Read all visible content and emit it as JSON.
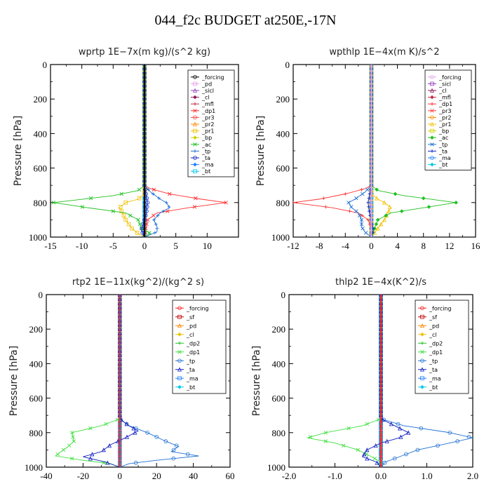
{
  "figure_title": "044_f2c  BUDGET at250E,-17N",
  "chart_data": [
    {
      "type": "line",
      "title": "wprtp   1E−7x(m kg)/(s^2 kg)",
      "ylabel": "Pressure [hPa]",
      "xlim": [
        -15,
        15
      ],
      "ylim": [
        1000,
        0
      ],
      "x_ticks": [
        -15,
        -10,
        -5,
        0,
        5,
        10
      ],
      "x_tick_labels": [
        "-15",
        "-10",
        "-5",
        "0",
        "5",
        "10"
      ],
      "y_ticks": [
        0,
        200,
        400,
        600,
        800,
        1000
      ],
      "grid": false,
      "legend_position": "top-right",
      "series": [
        {
          "name": "_forcing",
          "color": "#000000",
          "y": [
            0,
            100,
            200,
            300,
            400,
            500,
            600,
            700,
            750,
            800,
            850,
            900,
            950,
            1000
          ],
          "x": [
            0,
            0,
            0,
            0,
            0,
            0,
            0,
            0,
            0,
            0,
            0,
            0,
            0,
            0
          ]
        },
        {
          "name": "_pd",
          "color": "#e8a0e8",
          "y": [
            0,
            500,
            1000
          ],
          "x": [
            0,
            0,
            0
          ]
        },
        {
          "name": "_sicl",
          "color": "#9040c0",
          "y": [
            0,
            500,
            1000
          ],
          "x": [
            0,
            0,
            0
          ]
        },
        {
          "name": "_cl",
          "color": "#8b1a5a",
          "y": [
            0,
            500,
            1000
          ],
          "x": [
            0,
            0,
            0
          ]
        },
        {
          "name": "_mfl",
          "color": "#c0304a",
          "y": [
            0,
            500,
            1000
          ],
          "x": [
            0,
            0,
            0
          ]
        },
        {
          "name": "_dp1",
          "color": "#ff3030",
          "y": [
            0,
            700,
            720,
            750,
            780,
            800,
            830,
            860,
            900,
            950,
            1000
          ],
          "x": [
            0,
            0,
            1,
            4,
            9,
            13,
            7,
            2,
            0.5,
            0.2,
            0
          ]
        },
        {
          "name": "_pr3",
          "color": "#ff4040",
          "y": [
            0,
            500,
            1000
          ],
          "x": [
            0,
            0,
            0
          ]
        },
        {
          "name": "_pr2",
          "color": "#ff8800",
          "y": [
            0,
            500,
            1000
          ],
          "x": [
            0,
            0,
            0
          ]
        },
        {
          "name": "_pr1",
          "color": "#f0c000",
          "y": [
            0,
            750,
            780,
            800,
            830,
            860,
            900,
            950,
            980,
            1000
          ],
          "x": [
            0,
            0,
            -1,
            -3,
            -4,
            -3.5,
            -3,
            -2,
            -1,
            0
          ]
        },
        {
          "name": "_bp",
          "color": "#d0d000",
          "y": [
            0,
            500,
            1000
          ],
          "x": [
            0,
            0,
            0
          ]
        },
        {
          "name": "_ac",
          "color": "#20c020",
          "y": [
            0,
            700,
            730,
            760,
            800,
            830,
            860,
            900,
            950,
            980,
            1000
          ],
          "x": [
            0,
            0,
            -1,
            -5,
            -14.5,
            -9,
            -3,
            -1,
            -0.5,
            1,
            0
          ]
        },
        {
          "name": "_tp",
          "color": "#2070d0",
          "y": [
            0,
            700,
            740,
            780,
            800,
            830,
            860,
            900,
            940,
            970,
            1000
          ],
          "x": [
            0,
            0,
            1,
            2.5,
            3.5,
            4,
            2.5,
            1.5,
            2,
            2,
            0
          ]
        },
        {
          "name": "_ta",
          "color": "#1020c0",
          "y": [
            0,
            700,
            760,
            800,
            860,
            900,
            960,
            1000
          ],
          "x": [
            0,
            0,
            0.3,
            0.5,
            0.3,
            0,
            -0.5,
            0
          ]
        },
        {
          "name": "_ma",
          "color": "#2080ff",
          "y": [
            0,
            500,
            1000
          ],
          "x": [
            0,
            0,
            0
          ]
        },
        {
          "name": "_bt",
          "color": "#00c8e8",
          "y": [
            0,
            500,
            1000
          ],
          "x": [
            0,
            0,
            0
          ]
        }
      ]
    },
    {
      "type": "line",
      "title": "wpthlp   1E−4x(m K)/s^2",
      "ylabel": "Pressure [hPa]",
      "xlim": [
        -12,
        16
      ],
      "ylim": [
        1000,
        0
      ],
      "x_ticks": [
        -12,
        -8,
        -4,
        0,
        4,
        8,
        12,
        16
      ],
      "x_tick_labels": [
        "-12",
        "-8",
        "-4",
        "0",
        "4",
        "8",
        "12",
        "16"
      ],
      "y_ticks": [
        0,
        200,
        400,
        600,
        800,
        1000
      ],
      "grid": false,
      "legend_position": "top-right",
      "series": [
        {
          "name": "_forcing",
          "color": "#e8a0e8",
          "y": [
            0,
            100,
            200,
            300,
            400,
            500,
            600,
            700,
            750,
            800,
            850,
            900,
            950,
            1000
          ],
          "x": [
            0,
            0,
            0,
            0,
            0,
            0,
            0,
            0,
            0,
            0,
            0,
            0,
            0,
            0
          ]
        },
        {
          "name": "_sicl",
          "color": "#9040c0",
          "y": [
            0,
            500,
            1000
          ],
          "x": [
            0,
            0,
            0
          ]
        },
        {
          "name": "_cl",
          "color": "#8b1a5a",
          "y": [
            0,
            500,
            1000
          ],
          "x": [
            0,
            0,
            0
          ]
        },
        {
          "name": "_mfl",
          "color": "#c0304a",
          "y": [
            0,
            500,
            1000
          ],
          "x": [
            0,
            0,
            0
          ]
        },
        {
          "name": "_dp1",
          "color": "#ff3030",
          "y": [
            0,
            700,
            720,
            750,
            780,
            800,
            830,
            860,
            900,
            950,
            1000
          ],
          "x": [
            0,
            0,
            -1,
            -4,
            -8,
            -12,
            -6,
            -2,
            -0.5,
            0,
            0
          ]
        },
        {
          "name": "_pr3",
          "color": "#ff4040",
          "y": [
            0,
            500,
            1000
          ],
          "x": [
            0,
            0,
            0
          ]
        },
        {
          "name": "_pr2",
          "color": "#ff8800",
          "y": [
            0,
            500,
            1000
          ],
          "x": [
            0,
            0,
            0
          ]
        },
        {
          "name": "_pr1",
          "color": "#f0c000",
          "y": [
            0,
            750,
            780,
            800,
            830,
            860,
            900,
            950,
            1000
          ],
          "x": [
            0,
            0,
            1,
            2,
            3,
            2.5,
            2,
            1,
            0
          ]
        },
        {
          "name": "_bp",
          "color": "#d0d000",
          "y": [
            0,
            500,
            1000
          ],
          "x": [
            0,
            0,
            0
          ]
        },
        {
          "name": "_ac",
          "color": "#20c020",
          "y": [
            0,
            700,
            730,
            760,
            800,
            830,
            860,
            900,
            950,
            1000
          ],
          "x": [
            0,
            0,
            1,
            5,
            13,
            8,
            3,
            1,
            0.5,
            0
          ]
        },
        {
          "name": "_tp",
          "color": "#2070d0",
          "y": [
            0,
            700,
            740,
            780,
            800,
            830,
            860,
            900,
            940,
            970,
            1000
          ],
          "x": [
            0,
            0,
            -1,
            -2.5,
            -3.5,
            -3,
            -2,
            -1.5,
            -1.5,
            -1,
            0
          ]
        },
        {
          "name": "_ta",
          "color": "#1020c0",
          "y": [
            0,
            700,
            760,
            800,
            860,
            900,
            960,
            1000
          ],
          "x": [
            0,
            0,
            -0.3,
            -0.5,
            -0.3,
            0,
            0.3,
            0
          ]
        },
        {
          "name": "_ma",
          "color": "#2080ff",
          "y": [
            0,
            500,
            1000
          ],
          "x": [
            0,
            0,
            0
          ]
        },
        {
          "name": "_bt",
          "color": "#00c8e8",
          "y": [
            0,
            500,
            1000
          ],
          "x": [
            0,
            0,
            0
          ]
        }
      ]
    },
    {
      "type": "line",
      "title": "rtp2   1E−11x(kg^2)/(kg^2 s)",
      "ylabel": "Pressure [hPa]",
      "xlim": [
        -40,
        60
      ],
      "ylim": [
        1000,
        0
      ],
      "x_ticks": [
        -40,
        -20,
        0,
        20,
        40,
        60
      ],
      "x_tick_labels": [
        "-40",
        "-20",
        "0",
        "20",
        "40",
        "60"
      ],
      "y_ticks": [
        0,
        200,
        400,
        600,
        800,
        1000
      ],
      "grid": false,
      "legend_position": "top-right",
      "series": [
        {
          "name": "_forcing",
          "color": "#ff2020",
          "y": [
            0,
            100,
            200,
            300,
            400,
            500,
            600,
            700,
            750,
            800,
            850,
            900,
            950,
            1000
          ],
          "x": [
            0,
            0,
            0,
            0,
            0,
            0,
            0,
            0,
            0,
            0,
            0,
            0,
            0,
            0
          ]
        },
        {
          "name": "_sf",
          "color": "#c00000",
          "y": [
            0,
            500,
            1000
          ],
          "x": [
            0,
            0,
            0
          ]
        },
        {
          "name": "_pd",
          "color": "#ff8800",
          "y": [
            0,
            500,
            1000
          ],
          "x": [
            0,
            0,
            0
          ]
        },
        {
          "name": "_cl",
          "color": "#f0c000",
          "y": [
            0,
            500,
            1000
          ],
          "x": [
            0,
            0,
            0
          ]
        },
        {
          "name": "_dp2",
          "color": "#20c020",
          "y": [
            0,
            500,
            1000
          ],
          "x": [
            0,
            0,
            0
          ]
        },
        {
          "name": "_dp1",
          "color": "#40e040",
          "y": [
            0,
            720,
            760,
            800,
            850,
            880,
            910,
            935,
            960,
            980,
            1000
          ],
          "x": [
            0,
            0,
            -10,
            -26,
            -25,
            -28,
            -32,
            -35,
            -20,
            -5,
            0
          ]
        },
        {
          "name": "_tp",
          "color": "#2070d0",
          "y": [
            0,
            720,
            760,
            800,
            850,
            880,
            910,
            935,
            960,
            980,
            1000
          ],
          "x": [
            0,
            0,
            5,
            15,
            25,
            32,
            28,
            43,
            20,
            5,
            0
          ]
        },
        {
          "name": "_ta",
          "color": "#1020c0",
          "y": [
            0,
            720,
            760,
            790,
            830,
            870,
            910,
            940,
            970,
            1000
          ],
          "x": [
            0,
            0,
            5,
            10,
            3,
            -5,
            -10,
            -20,
            -8,
            0
          ]
        },
        {
          "name": "_ma",
          "color": "#2080ff",
          "y": [
            0,
            500,
            1000
          ],
          "x": [
            0,
            0,
            0
          ]
        },
        {
          "name": "_bt",
          "color": "#00c8e8",
          "y": [
            0,
            500,
            1000
          ],
          "x": [
            0,
            0,
            0
          ]
        }
      ]
    },
    {
      "type": "line",
      "title": "thlp2   1E−4x(K^2)/s",
      "ylabel": "Pressure [hPa]",
      "xlim": [
        -2.0,
        2.0
      ],
      "ylim": [
        1000,
        0
      ],
      "x_ticks": [
        -2.0,
        -1.0,
        0.0,
        1.0,
        2.0
      ],
      "x_tick_labels": [
        "-2.0",
        "-1.0",
        "0.0",
        "1.0",
        "2.0"
      ],
      "y_ticks": [
        0,
        200,
        400,
        600,
        800,
        1000
      ],
      "grid": false,
      "legend_position": "top-right",
      "series": [
        {
          "name": "_forcing",
          "color": "#ff2020",
          "y": [
            0,
            100,
            200,
            300,
            400,
            500,
            600,
            700,
            750,
            800,
            850,
            900,
            950,
            1000
          ],
          "x": [
            0,
            0,
            0,
            0,
            0,
            0,
            0,
            0,
            0,
            0,
            0,
            0,
            0,
            0
          ]
        },
        {
          "name": "_sf",
          "color": "#c00000",
          "y": [
            0,
            500,
            1000
          ],
          "x": [
            0,
            0,
            0
          ]
        },
        {
          "name": "_pd",
          "color": "#ff8800",
          "y": [
            0,
            500,
            1000
          ],
          "x": [
            0,
            0,
            0
          ]
        },
        {
          "name": "_cl",
          "color": "#f0c000",
          "y": [
            0,
            500,
            1000
          ],
          "x": [
            0,
            0,
            0
          ]
        },
        {
          "name": "_dp2",
          "color": "#20c020",
          "y": [
            0,
            500,
            1000
          ],
          "x": [
            0,
            0,
            0
          ]
        },
        {
          "name": "_dp1",
          "color": "#40e040",
          "y": [
            0,
            720,
            760,
            800,
            830,
            860,
            900,
            940,
            970,
            1000
          ],
          "x": [
            0,
            0,
            -0.4,
            -1.2,
            -1.6,
            -1.0,
            -0.5,
            -0.2,
            0,
            0
          ]
        },
        {
          "name": "_tp",
          "color": "#2070d0",
          "y": [
            0,
            720,
            760,
            800,
            830,
            860,
            900,
            940,
            970,
            1000
          ],
          "x": [
            0,
            0,
            0.5,
            1.5,
            2.0,
            1.5,
            0.8,
            0.4,
            0.1,
            0
          ]
        },
        {
          "name": "_ta",
          "color": "#1020c0",
          "y": [
            0,
            720,
            760,
            800,
            830,
            860,
            900,
            940,
            970,
            1000
          ],
          "x": [
            0,
            0,
            0.3,
            0.6,
            0.4,
            0,
            -0.3,
            -0.4,
            -0.1,
            0
          ]
        },
        {
          "name": "_ma",
          "color": "#2080ff",
          "y": [
            0,
            500,
            1000
          ],
          "x": [
            0,
            0,
            0
          ]
        },
        {
          "name": "_bt",
          "color": "#00c8e8",
          "y": [
            0,
            500,
            1000
          ],
          "x": [
            0,
            0,
            0
          ]
        }
      ]
    }
  ]
}
